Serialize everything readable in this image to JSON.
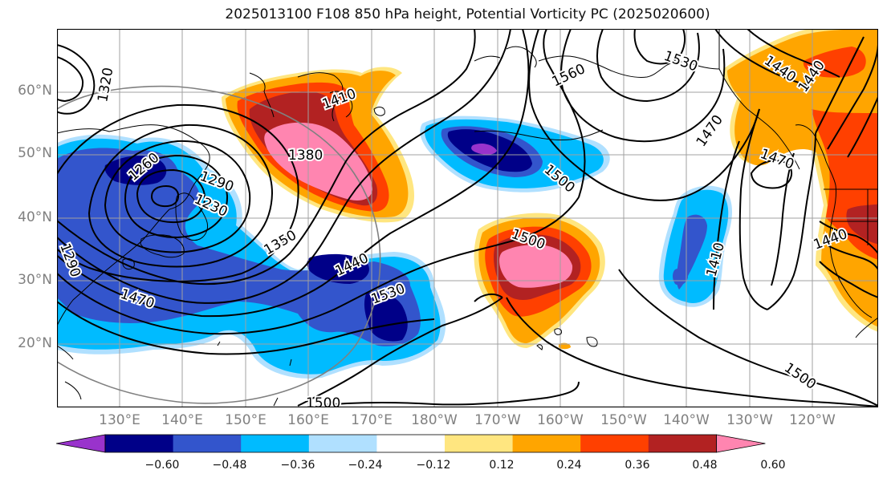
{
  "title": "2025013100 F108 850 hPa height, Potential Vorticity PC (2025020600)",
  "lat_labels": [
    "60°N",
    "50°N",
    "40°N",
    "30°N",
    "20°N"
  ],
  "lon_labels": [
    "130°E",
    "140°E",
    "150°E",
    "160°E",
    "170°E",
    "180°W",
    "170°W",
    "160°W",
    "150°W",
    "140°W",
    "130°W",
    "120°W"
  ],
  "contour_labels": [
    "1320",
    "1410",
    "1380",
    "1290",
    "1260",
    "1230",
    "1350",
    "1440",
    "1470",
    "1530",
    "1500",
    "1560",
    "1530",
    "1500",
    "1470",
    "1500",
    "1410",
    "1440",
    "1500",
    "1440",
    "1440",
    "1470",
    "1290"
  ],
  "colorbar": {
    "tick_labels": [
      "−0.60",
      "−0.48",
      "−0.36",
      "−0.24",
      "−0.12",
      "0.12",
      "0.24",
      "0.36",
      "0.48",
      "0.60"
    ],
    "colors": [
      "#9933cc",
      "#000088",
      "#3355cc",
      "#00bbff",
      "#b0e0ff",
      "#ffffff",
      "#ffe680",
      "#ffa500",
      "#ff4000",
      "#b22222",
      "#ff85b0"
    ]
  },
  "colors": {
    "coastline": "#000000",
    "grid": "#a0a0a0",
    "contour": "#000000",
    "circle": "#808080"
  }
}
